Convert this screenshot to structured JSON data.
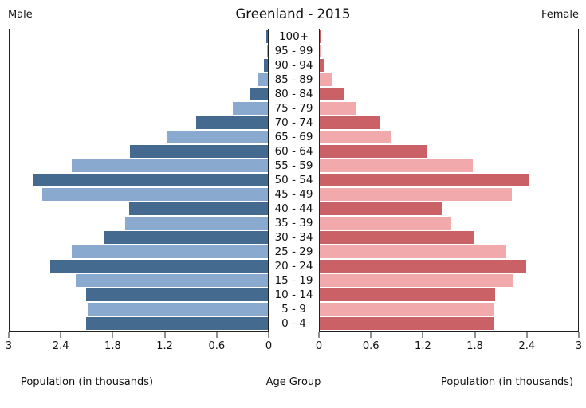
{
  "header": {
    "title": "Greenland - 2015",
    "left_label": "Male",
    "right_label": "Female"
  },
  "footer": {
    "left_axis_label": "Population (in thousands)",
    "center_label": "Age Group",
    "right_axis_label": "Population (in thousands)"
  },
  "chart_data": {
    "type": "bar",
    "subtype": "population_pyramid",
    "title": "Greenland - 2015",
    "unit": "thousands",
    "x_max": 3,
    "grid": false,
    "legend_position": "none",
    "categories_top_to_bottom": [
      "100+",
      "95 - 99",
      "90 - 94",
      "85 - 89",
      "80 - 84",
      "75 - 79",
      "70 - 74",
      "65 - 69",
      "60 - 64",
      "55 - 59",
      "50 - 54",
      "45 - 49",
      "40 - 44",
      "35 - 39",
      "30 - 34",
      "25 - 29",
      "20 - 24",
      "15 - 19",
      "10 - 14",
      "5 - 9",
      "0 - 4"
    ],
    "series": [
      {
        "name": "Male",
        "side": "left",
        "values_top_to_bottom": [
          0.02,
          0.01,
          0.05,
          0.11,
          0.21,
          0.41,
          0.83,
          1.18,
          1.6,
          2.28,
          2.73,
          2.62,
          1.61,
          1.66,
          1.91,
          2.28,
          2.53,
          2.23,
          2.11,
          2.08,
          2.11
        ]
      },
      {
        "name": "Female",
        "side": "right",
        "values_top_to_bottom": [
          0.02,
          0.01,
          0.06,
          0.15,
          0.28,
          0.43,
          0.69,
          0.82,
          1.25,
          1.78,
          2.43,
          2.23,
          1.42,
          1.53,
          1.8,
          2.17,
          2.4,
          2.24,
          2.04,
          2.03,
          2.02
        ]
      }
    ],
    "left_axis_ticks": [
      "3",
      "2.4",
      "1.8",
      "1.2",
      "0.6",
      "0"
    ],
    "right_axis_ticks": [
      "0",
      "0.6",
      "1.2",
      "1.8",
      "2.4",
      "3"
    ],
    "xlabel": "Population (in thousands)",
    "center_axis_label": "Age Group",
    "colors": {
      "male_dark": "#456a8f",
      "male_light": "#8aa9ce",
      "female_dark": "#c96167",
      "female_light": "#f2a9ab",
      "frame": "#222222"
    }
  }
}
